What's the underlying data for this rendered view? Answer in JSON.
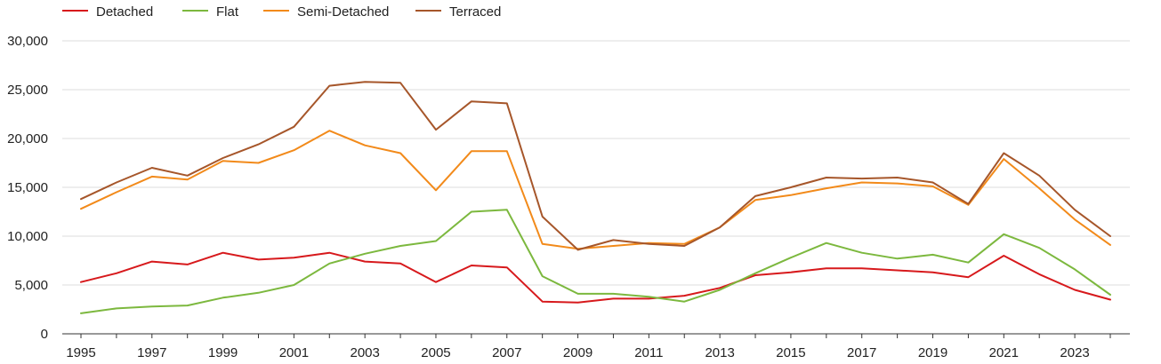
{
  "chart_data": {
    "type": "line",
    "title": "",
    "xlabel": "",
    "ylabel": "",
    "legend_position": "top-left",
    "grid": true,
    "x": [
      1995,
      1996,
      1997,
      1998,
      1999,
      2000,
      2001,
      2002,
      2003,
      2004,
      2005,
      2006,
      2007,
      2008,
      2009,
      2010,
      2011,
      2012,
      2013,
      2014,
      2015,
      2016,
      2017,
      2018,
      2019,
      2020,
      2021,
      2022,
      2023,
      2024
    ],
    "x_ticks": [
      "1995",
      "1997",
      "1999",
      "2001",
      "2003",
      "2005",
      "2007",
      "2009",
      "2011",
      "2013",
      "2015",
      "2017",
      "2019",
      "2021",
      "2023"
    ],
    "ylim": [
      0,
      30000
    ],
    "y_ticks": [
      {
        "value": 0,
        "label": "0"
      },
      {
        "value": 5000,
        "label": "5,000"
      },
      {
        "value": 10000,
        "label": "10,000"
      },
      {
        "value": 15000,
        "label": "15,000"
      },
      {
        "value": 20000,
        "label": "20,000"
      },
      {
        "value": 25000,
        "label": "25,000"
      },
      {
        "value": 30000,
        "label": "30,000"
      }
    ],
    "series": [
      {
        "name": "Detached",
        "color": "#d7191c",
        "values": [
          5300,
          6200,
          7400,
          7100,
          8300,
          7600,
          7800,
          8300,
          7400,
          7200,
          5300,
          7000,
          6800,
          3300,
          3200,
          3600,
          3600,
          3900,
          4700,
          6000,
          6300,
          6700,
          6700,
          6500,
          6300,
          5800,
          8000,
          6100,
          4500,
          3500
        ]
      },
      {
        "name": "Flat",
        "color": "#7cb83e",
        "values": [
          2100,
          2600,
          2800,
          2900,
          3700,
          4200,
          5000,
          7200,
          8200,
          9000,
          9500,
          12500,
          12700,
          5900,
          4100,
          4100,
          3800,
          3300,
          4500,
          6200,
          7800,
          9300,
          8300,
          7700,
          8100,
          7300,
          10200,
          8800,
          6600,
          4000
        ]
      },
      {
        "name": "Semi-Detached",
        "color": "#f28a1a",
        "values": [
          12800,
          14500,
          16100,
          15800,
          17700,
          17500,
          18800,
          20800,
          19300,
          18500,
          14700,
          18700,
          18700,
          9200,
          8700,
          9000,
          9300,
          9200,
          10900,
          13700,
          14200,
          14900,
          15500,
          15400,
          15100,
          13200,
          17900,
          14900,
          11700,
          9100
        ]
      },
      {
        "name": "Terraced",
        "color": "#a6562a",
        "values": [
          13800,
          15500,
          17000,
          16200,
          18000,
          19400,
          21200,
          25400,
          25800,
          25700,
          20900,
          23800,
          23600,
          12000,
          8600,
          9600,
          9200,
          9000,
          10900,
          14100,
          15000,
          16000,
          15900,
          16000,
          15500,
          13300,
          18500,
          16200,
          12700,
          10000
        ]
      }
    ]
  }
}
